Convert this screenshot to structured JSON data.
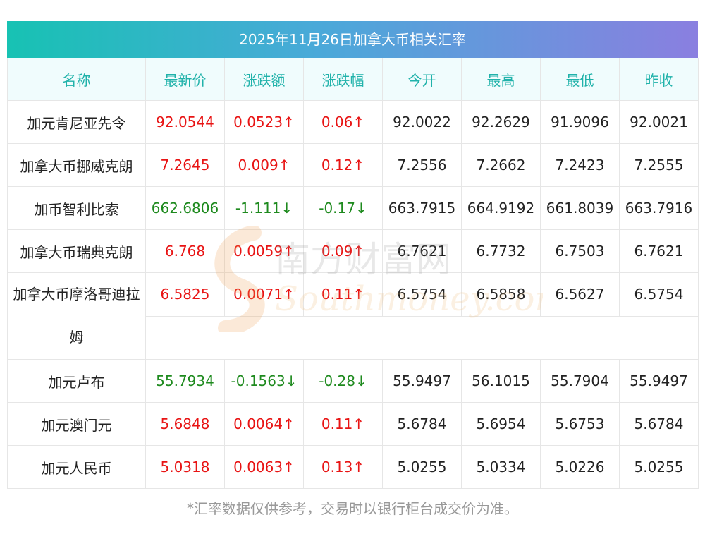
{
  "title": "2025年11月26日加拿大币相关汇率",
  "headers": [
    "名称",
    "最新价",
    "涨跌额",
    "涨跌幅",
    "今开",
    "最高",
    "最低",
    "昨收"
  ],
  "rows": [
    {
      "name": "加元肯尼亚先令",
      "latest": "92.0544",
      "change": "0.0523↑",
      "pct": "0.06↑",
      "open": "92.0022",
      "high": "92.2629",
      "low": "91.9096",
      "prev": "92.0021",
      "trend": "up"
    },
    {
      "name": "加拿大币挪威克朗",
      "latest": "7.2645",
      "change": "0.009↑",
      "pct": "0.12↑",
      "open": "7.2556",
      "high": "7.2662",
      "low": "7.2423",
      "prev": "7.2555",
      "trend": "up"
    },
    {
      "name": "加币智利比索",
      "latest": "662.6806",
      "change": "-1.111↓",
      "pct": "-0.17↓",
      "open": "663.7915",
      "high": "664.9192",
      "low": "661.8039",
      "prev": "663.7916",
      "trend": "down"
    },
    {
      "name": "加拿大币瑞典克朗",
      "latest": "6.768",
      "change": "0.0059↑",
      "pct": "0.09↑",
      "open": "6.7621",
      "high": "6.7732",
      "low": "6.7503",
      "prev": "6.7621",
      "trend": "up"
    },
    {
      "name": "加拿大币摩洛哥迪拉姆",
      "latest": "6.5825",
      "change": "0.0071↑",
      "pct": "0.11↑",
      "open": "6.5754",
      "high": "6.5858",
      "low": "6.5627",
      "prev": "6.5754",
      "trend": "up"
    },
    {
      "name": "加元卢布",
      "latest": "55.7934",
      "change": "-0.1563↓",
      "pct": "-0.28↓",
      "open": "55.9497",
      "high": "56.1015",
      "low": "55.7904",
      "prev": "55.9497",
      "trend": "down"
    },
    {
      "name": "加元澳门元",
      "latest": "5.6848",
      "change": "0.0064↑",
      "pct": "0.11↑",
      "open": "5.6784",
      "high": "5.6954",
      "low": "5.6753",
      "prev": "5.6784",
      "trend": "up"
    },
    {
      "name": "加元人民币",
      "latest": "5.0318",
      "change": "0.0063↑",
      "pct": "0.13↑",
      "open": "5.0255",
      "high": "5.0334",
      "low": "5.0226",
      "prev": "5.0255",
      "trend": "up"
    }
  ],
  "watermark": {
    "cn": "南方财富网",
    "en": "Southmoney.com"
  },
  "footnote": "*汇率数据仅供参考，交易时以银行柜台成交价为准。",
  "colors": {
    "up": "#e81414",
    "down": "#1e8a1e",
    "header_text": "#20b2aa"
  }
}
